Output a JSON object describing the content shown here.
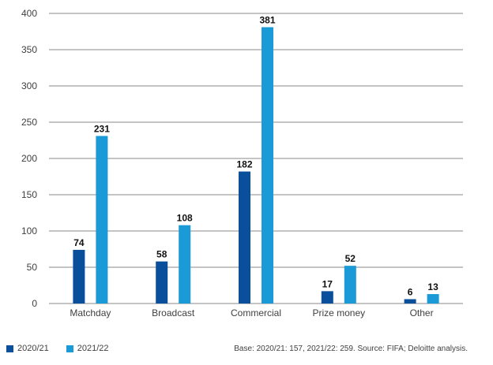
{
  "chart_data": {
    "type": "bar",
    "categories": [
      "Matchday",
      "Broadcast",
      "Commercial",
      "Prize money",
      "Other"
    ],
    "series": [
      {
        "name": "2020/21",
        "values": [
          74,
          58,
          182,
          17,
          6
        ],
        "color": "#0a4f9c"
      },
      {
        "name": "2021/22",
        "values": [
          231,
          108,
          381,
          52,
          13
        ],
        "color": "#1a9ad6"
      }
    ],
    "yticks": [
      0,
      50,
      100,
      150,
      200,
      250,
      300,
      350,
      400
    ],
    "ylim": [
      0,
      400
    ],
    "grid": true,
    "legend_position": "bottom-left",
    "note": "Base: 2020/21: 157, 2021/22: 259. Source: FIFA; Deloitte analysis."
  }
}
